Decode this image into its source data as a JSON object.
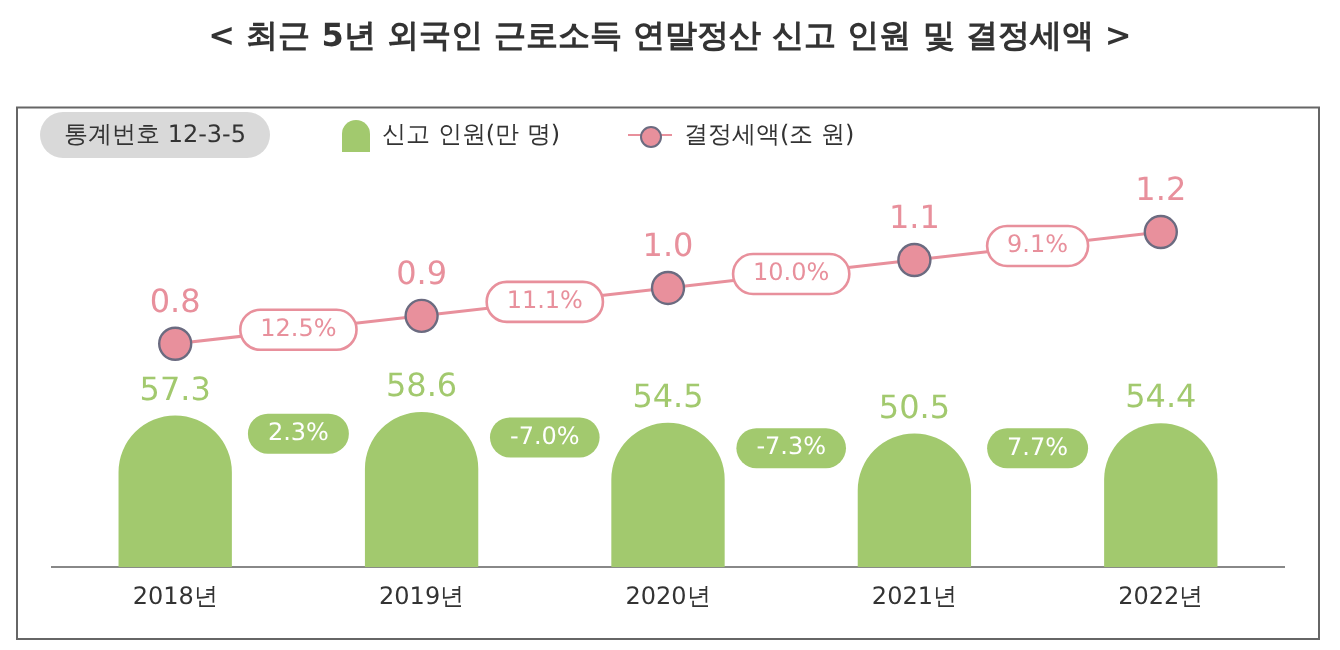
{
  "chart_data": {
    "type": "bar",
    "title": "< 최근 5년 외국인 근로소득 연말정산 신고 인원 및 결정세액 >",
    "categories": [
      "2018년",
      "2019년",
      "2020년",
      "2021년",
      "2022년"
    ],
    "series": [
      {
        "name": "신고 인원(만 명)",
        "color": "#a2c96e",
        "values": [
          57.3,
          58.6,
          54.5,
          50.5,
          54.4
        ],
        "value_labels": [
          "57.3",
          "58.6",
          "54.5",
          "50.5",
          "54.4"
        ]
      },
      {
        "name": "결정세액(조 원)",
        "type": "line",
        "axis": "y2",
        "color": "#e8909c",
        "values": [
          0.8,
          0.9,
          1.0,
          1.1,
          1.2
        ],
        "value_labels": [
          "0.8",
          "0.9",
          "1.0",
          "1.1",
          "1.2"
        ]
      }
    ],
    "ylim": [
      0,
      174
    ],
    "y2lim": [
      0,
      1.65
    ],
    "tick_labels": "x",
    "grid": false,
    "legend": "top left",
    "marker": "circle",
    "line_style": "solid",
    "annotations": [
      "통계번호 12-3-5",
      "12.5%",
      "11.1%",
      "10.0%",
      "9.1%",
      "2.3%",
      "-7.0%",
      "-7.3%",
      "7.7%"
    ]
  }
}
